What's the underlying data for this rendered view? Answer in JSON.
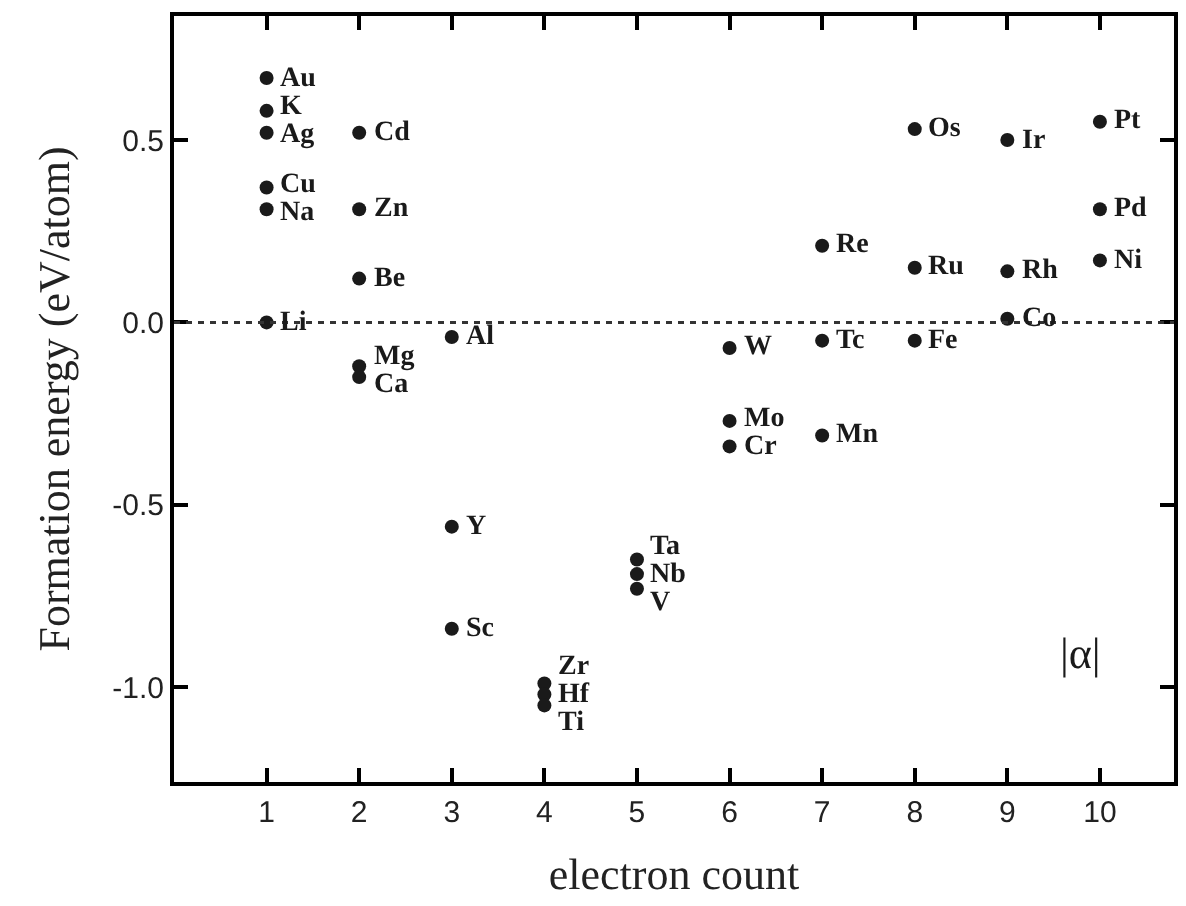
{
  "chart_data": {
    "type": "scatter",
    "xlabel": "electron count",
    "ylabel": "Formation energy (eV/atom)",
    "xlim": [
      0,
      10.8
    ],
    "ylim": [
      -1.26,
      0.84
    ],
    "xticks": [
      1,
      2,
      3,
      4,
      5,
      6,
      7,
      8,
      9,
      10
    ],
    "yticks": [
      {
        "value": 0.5,
        "label": "0.5"
      },
      {
        "value": 0.0,
        "label": "0.0"
      },
      {
        "value": -0.5,
        "label": "-0.5"
      },
      {
        "value": -1.0,
        "label": "-1.0"
      }
    ],
    "marker": "circle",
    "series": [
      {
        "color": "#1a1a1a",
        "x": [
          1,
          1,
          1,
          1,
          1,
          1,
          2,
          2,
          2,
          2,
          2,
          3,
          3,
          3,
          4,
          4,
          4,
          5,
          5,
          5,
          6,
          6,
          6,
          7,
          7,
          7,
          8,
          8,
          8,
          9,
          9,
          9,
          10,
          10,
          10
        ],
        "values": [
          0.67,
          0.58,
          0.52,
          0.37,
          0.31,
          0.0,
          0.52,
          0.31,
          0.12,
          -0.12,
          -0.15,
          -0.04,
          -0.56,
          -0.84,
          -0.99,
          -1.02,
          -1.05,
          -0.65,
          -0.69,
          -0.73,
          -0.07,
          -0.27,
          -0.34,
          0.21,
          -0.05,
          -0.31,
          0.53,
          0.15,
          -0.05,
          0.5,
          0.14,
          0.01,
          0.55,
          0.31,
          0.17
        ]
      }
    ],
    "ref_lines": [
      {
        "axis": "y",
        "value": 0.0,
        "line_style": "dotted",
        "color": "#333333"
      }
    ],
    "annotations": [
      {
        "text": "Au",
        "x": 1,
        "y": 0.67
      },
      {
        "text": "K",
        "x": 1,
        "y": 0.58
      },
      {
        "text": "Ag",
        "x": 1,
        "y": 0.52
      },
      {
        "text": "Cu",
        "x": 1,
        "y": 0.37
      },
      {
        "text": "Na",
        "x": 1,
        "y": 0.31
      },
      {
        "text": "Li",
        "x": 1,
        "y": 0.0
      },
      {
        "text": "Cd",
        "x": 2,
        "y": 0.52
      },
      {
        "text": "Zn",
        "x": 2,
        "y": 0.31
      },
      {
        "text": "Be",
        "x": 2,
        "y": 0.12
      },
      {
        "text": "Mg",
        "x": 2,
        "y": -0.12
      },
      {
        "text": "Ca",
        "x": 2,
        "y": -0.15
      },
      {
        "text": "Al",
        "x": 3,
        "y": -0.04
      },
      {
        "text": "Y",
        "x": 3,
        "y": -0.56
      },
      {
        "text": "Sc",
        "x": 3,
        "y": -0.84
      },
      {
        "text": "Zr",
        "x": 4,
        "y": -0.99
      },
      {
        "text": "Hf",
        "x": 4,
        "y": -1.02
      },
      {
        "text": "Ti",
        "x": 4,
        "y": -1.05
      },
      {
        "text": "Ta",
        "x": 5,
        "y": -0.65
      },
      {
        "text": "Nb",
        "x": 5,
        "y": -0.69
      },
      {
        "text": "V",
        "x": 5,
        "y": -0.73
      },
      {
        "text": "W",
        "x": 6,
        "y": -0.07
      },
      {
        "text": "Mo",
        "x": 6,
        "y": -0.27
      },
      {
        "text": "Cr",
        "x": 6,
        "y": -0.34
      },
      {
        "text": "Re",
        "x": 7,
        "y": 0.21
      },
      {
        "text": "Tc",
        "x": 7,
        "y": -0.05
      },
      {
        "text": "Mn",
        "x": 7,
        "y": -0.31
      },
      {
        "text": "Os",
        "x": 8,
        "y": 0.53
      },
      {
        "text": "Ru",
        "x": 8,
        "y": 0.15
      },
      {
        "text": "Fe",
        "x": 8,
        "y": -0.05
      },
      {
        "text": "Ir",
        "x": 9,
        "y": 0.5
      },
      {
        "text": "Rh",
        "x": 9,
        "y": 0.14
      },
      {
        "text": "Co",
        "x": 9,
        "y": 0.01
      },
      {
        "text": "Pt",
        "x": 10,
        "y": 0.55
      },
      {
        "text": "Pd",
        "x": 10,
        "y": 0.31
      },
      {
        "text": "Ni",
        "x": 10,
        "y": 0.17
      },
      "|α|"
    ]
  }
}
